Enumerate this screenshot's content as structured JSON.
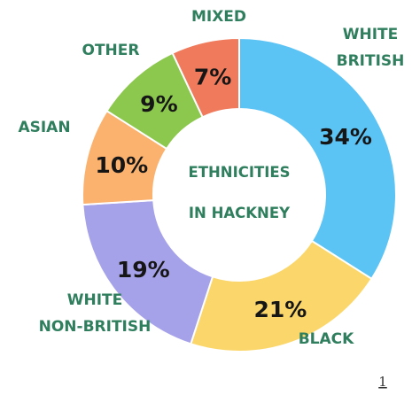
{
  "chart_data": {
    "type": "pie",
    "title_lines": [
      "ETHNICITIES",
      "IN HACKNEY"
    ],
    "slices": [
      {
        "category_lines": [
          "WHITE",
          "BRITISH"
        ],
        "value": 34,
        "label": "34%",
        "color": "#5cc3f5"
      },
      {
        "category_lines": [
          "BLACK"
        ],
        "value": 21,
        "label": "21%",
        "color": "#fbd76b"
      },
      {
        "category_lines": [
          "WHITE",
          "NON-BRITISH"
        ],
        "value": 19,
        "label": "19%",
        "color": "#a6a2ea"
      },
      {
        "category_lines": [
          "ASIAN"
        ],
        "value": 10,
        "label": "10%",
        "color": "#fbb26f"
      },
      {
        "category_lines": [
          "OTHER"
        ],
        "value": 9,
        "label": "9%",
        "color": "#8cc84e"
      },
      {
        "category_lines": [
          "MIXED"
        ],
        "value": 7,
        "label": "7%",
        "color": "#f07a5c"
      }
    ]
  },
  "footnote": "1"
}
